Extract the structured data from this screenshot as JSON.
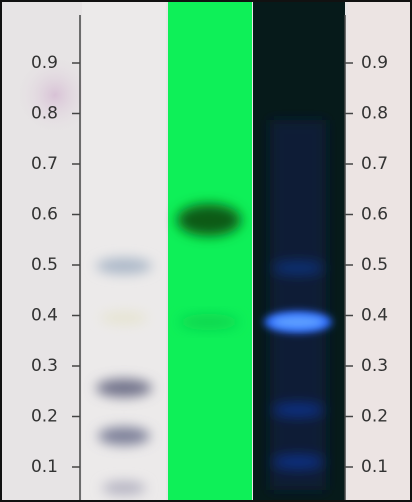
{
  "scale_left": [
    "0.9",
    "0.8",
    "0.7",
    "0.6",
    "0.5",
    "0.4",
    "0.3",
    "0.2",
    "0.1"
  ],
  "scale_right": [
    "0.9",
    "0.8",
    "0.7",
    "0.6",
    "0.5",
    "0.4",
    "0.3",
    "0.2",
    "0.1"
  ]
}
